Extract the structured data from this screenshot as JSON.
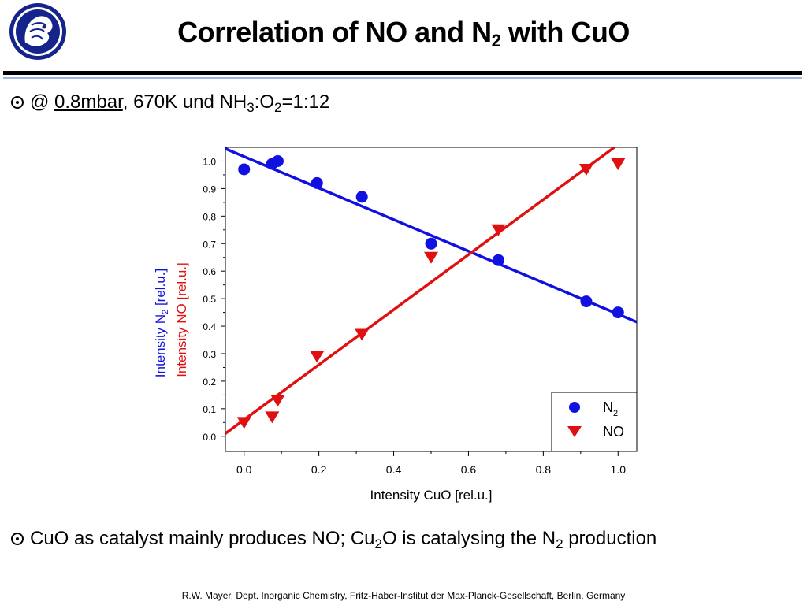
{
  "header": {
    "title_main": "Correlation of NO and N",
    "title_sub": "2",
    "title_end": " with CuO"
  },
  "bullet1": {
    "at": "@ ",
    "pressure": "0.8mbar",
    "rest1": ", 670K und NH",
    "sub1": "3",
    "rest2": ":O",
    "sub2": "2",
    "rest3": "=1:12"
  },
  "bullet2": {
    "part1": "CuO as catalyst mainly produces NO; Cu",
    "sub1": "2",
    "part2": "O is catalysing the N",
    "sub2": "2",
    "part3": " production"
  },
  "footer": "R.W. Mayer, Dept. Inorganic Chemistry, Fritz-Haber-Institut der Max-Planck-Gesellschaft, Berlin, Germany",
  "logo_icon": "max-planck-minerva-logo",
  "chart_data": {
    "type": "scatter",
    "xlabel": "Intensity CuO [rel.u.]",
    "ylabel_n2": "Intensity N",
    "ylabel_n2_sub": "2",
    "ylabel_n2_unit": " [rel.u.]",
    "ylabel_no": "Intensity NO [rel.u.]",
    "xlim": [
      -0.05,
      1.05
    ],
    "ylim": [
      -0.055,
      1.05
    ],
    "x_ticks": [
      "0.0",
      "0.2",
      "0.4",
      "0.6",
      "0.8",
      "1.0"
    ],
    "y_ticks": [
      "0.0",
      "0.1",
      "0.2",
      "0.3",
      "0.4",
      "0.5",
      "0.6",
      "0.7",
      "0.8",
      "0.9",
      "1.0"
    ],
    "legend": {
      "placement": "bottom-right",
      "n2_label": "N",
      "n2_sub": "2",
      "no_label": "NO"
    },
    "series": [
      {
        "key": "N2",
        "marker": "circle",
        "color": "#1010e0",
        "points": [
          [
            0.0,
            0.97
          ],
          [
            0.075,
            0.99
          ],
          [
            0.09,
            1.0
          ],
          [
            0.195,
            0.92
          ],
          [
            0.315,
            0.87
          ],
          [
            0.5,
            0.7
          ],
          [
            0.68,
            0.64
          ],
          [
            0.915,
            0.49
          ],
          [
            1.0,
            0.45
          ]
        ],
        "fit": [
          [
            -0.05,
            1.045
          ],
          [
            1.05,
            0.415
          ]
        ]
      },
      {
        "key": "NO",
        "marker": "triangle-down",
        "color": "#e01010",
        "points": [
          [
            0.0,
            0.05
          ],
          [
            0.075,
            0.07
          ],
          [
            0.09,
            0.13
          ],
          [
            0.195,
            0.29
          ],
          [
            0.315,
            0.37
          ],
          [
            0.5,
            0.65
          ],
          [
            0.68,
            0.75
          ],
          [
            0.915,
            0.97
          ],
          [
            1.0,
            0.99
          ]
        ],
        "fit": [
          [
            -0.05,
            0.01
          ],
          [
            0.99,
            1.05
          ]
        ]
      }
    ]
  }
}
